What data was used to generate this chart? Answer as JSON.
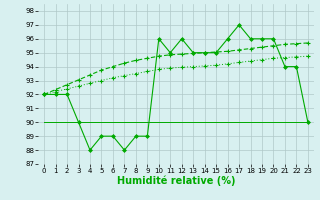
{
  "x": [
    0,
    1,
    2,
    3,
    4,
    5,
    6,
    7,
    8,
    9,
    10,
    11,
    12,
    13,
    14,
    15,
    16,
    17,
    18,
    19,
    20,
    21,
    22,
    23
  ],
  "line_jagged": [
    92,
    92,
    92,
    90,
    88,
    89,
    89,
    88,
    89,
    89,
    96,
    95,
    96,
    95,
    95,
    95,
    96,
    97,
    96,
    96,
    96,
    94,
    94,
    90
  ],
  "line_upper": [
    92,
    92.35,
    92.7,
    93.05,
    93.4,
    93.75,
    94.0,
    94.25,
    94.45,
    94.6,
    94.75,
    94.85,
    94.9,
    94.95,
    95.0,
    95.05,
    95.1,
    95.2,
    95.3,
    95.4,
    95.5,
    95.6,
    95.65,
    95.7
  ],
  "line_lower": [
    92,
    92.2,
    92.4,
    92.6,
    92.8,
    93.0,
    93.2,
    93.35,
    93.5,
    93.65,
    93.8,
    93.9,
    93.95,
    94.0,
    94.05,
    94.1,
    94.2,
    94.3,
    94.4,
    94.5,
    94.6,
    94.65,
    94.7,
    94.75
  ],
  "line_flat": [
    90,
    90,
    90,
    90,
    90,
    90,
    90,
    90,
    90,
    90,
    90,
    90,
    90,
    90,
    90,
    90,
    90,
    90,
    90,
    90,
    90,
    90,
    90,
    90
  ],
  "line_color": "#00aa00",
  "bg_color": "#d8f0f0",
  "grid_color": "#b0c8c8",
  "ylim": [
    87,
    98.5
  ],
  "yticks": [
    87,
    88,
    89,
    90,
    91,
    92,
    93,
    94,
    95,
    96,
    97,
    98
  ],
  "xticks": [
    0,
    1,
    2,
    3,
    4,
    5,
    6,
    7,
    8,
    9,
    10,
    11,
    12,
    13,
    14,
    15,
    16,
    17,
    18,
    19,
    20,
    21,
    22,
    23
  ],
  "xlabel": "Humidité relative (%)",
  "xlabel_fontsize": 7
}
